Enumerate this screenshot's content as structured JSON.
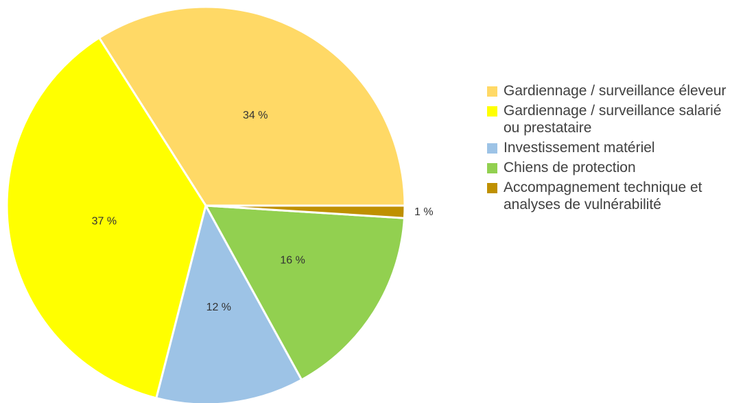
{
  "chart_data": {
    "type": "pie",
    "categories": [
      "Gardiennage / surveillance éleveur",
      "Gardiennage / surveillance salarié ou prestataire",
      "Investissement matériel",
      "Chiens de protection",
      "Accompagnement technique et analyses de vulnérabilité"
    ],
    "values": [
      34,
      37,
      12,
      16,
      1
    ],
    "value_labels": [
      "34 %",
      "37 %",
      "12 %",
      "16 %",
      "1 %"
    ],
    "colors": [
      "#ffd966",
      "#ffff00",
      "#9dc3e6",
      "#92d050",
      "#bf9000"
    ]
  }
}
